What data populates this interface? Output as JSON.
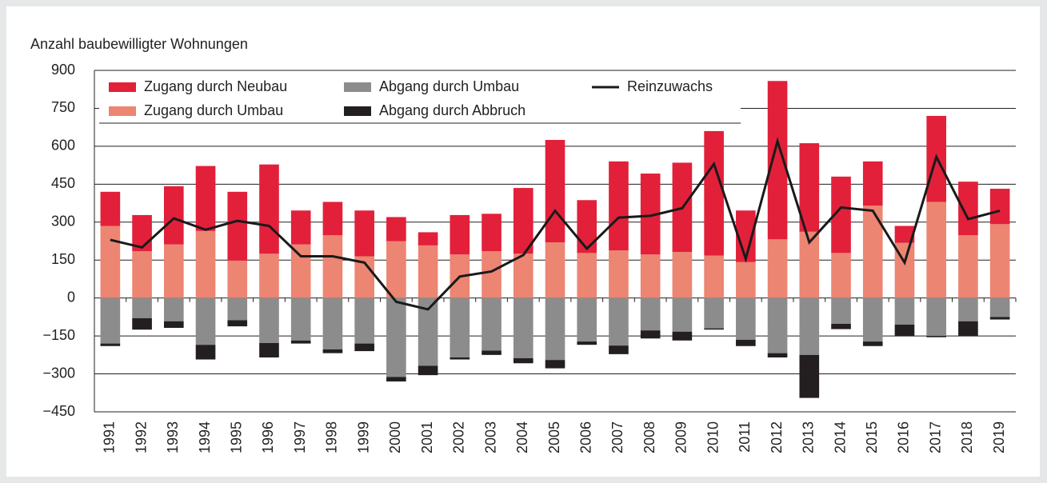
{
  "chart_data": {
    "type": "bar",
    "y_label": "Anzahl baubewilligter Wohnungen",
    "categories": [
      "1991",
      "1992",
      "1993",
      "1994",
      "1995",
      "1996",
      "1997",
      "1998",
      "1999",
      "2000",
      "2001",
      "2002",
      "2003",
      "2004",
      "2005",
      "2006",
      "2007",
      "2008",
      "2009",
      "2010",
      "2011",
      "2012",
      "2013",
      "2014",
      "2015",
      "2016",
      "2017",
      "2018",
      "2019"
    ],
    "series": [
      {
        "name": "Zugang durch Neubau",
        "color": "#e2203a",
        "type": "bar",
        "values": [
          135,
          143,
          230,
          257,
          272,
          353,
          134,
          132,
          181,
          95,
          52,
          156,
          148,
          260,
          405,
          209,
          352,
          320,
          353,
          492,
          204,
          626,
          350,
          302,
          175,
          67,
          340,
          212,
          140
        ]
      },
      {
        "name": "Zugang durch Umbau",
        "color": "#ec8572",
        "type": "bar",
        "values": [
          285,
          185,
          212,
          265,
          148,
          175,
          212,
          248,
          165,
          225,
          208,
          172,
          185,
          175,
          220,
          178,
          188,
          172,
          182,
          168,
          142,
          232,
          262,
          178,
          365,
          218,
          380,
          248,
          292
        ]
      },
      {
        "name": "Abgang durch Umbau",
        "color": "#8c8c8c",
        "type": "bar",
        "values": [
          -180,
          -80,
          -92,
          -185,
          -88,
          -178,
          -168,
          -203,
          -180,
          -312,
          -268,
          -235,
          -208,
          -238,
          -245,
          -172,
          -188,
          -128,
          -133,
          -120,
          -165,
          -218,
          -225,
          -102,
          -172,
          -105,
          -150,
          -92,
          -75
        ]
      },
      {
        "name": "Abgang durch Abbruch",
        "color": "#231f20",
        "type": "bar",
        "values": [
          -10,
          -45,
          -26,
          -58,
          -24,
          -57,
          -12,
          -15,
          -30,
          -18,
          -37,
          -8,
          -17,
          -20,
          -33,
          -13,
          -34,
          -32,
          -35,
          -5,
          -25,
          -17,
          -170,
          -21,
          -18,
          -45,
          -5,
          -58,
          -10
        ]
      },
      {
        "name": "Reinzuwachs",
        "color": "#1a1a1a",
        "type": "line",
        "values": [
          230,
          200,
          315,
          270,
          305,
          285,
          165,
          165,
          140,
          -15,
          -45,
          85,
          105,
          170,
          345,
          195,
          318,
          325,
          355,
          530,
          155,
          620,
          220,
          358,
          345,
          140,
          558,
          312,
          345
        ]
      }
    ],
    "ylim": [
      -450,
      900
    ],
    "yticks": [
      {
        "value": -450,
        "label": "−450"
      },
      {
        "value": -300,
        "label": "−300"
      },
      {
        "value": -150,
        "label": "−150"
      },
      0,
      150,
      300,
      450,
      600,
      750,
      900
    ],
    "grid": true,
    "legend": "top-left"
  }
}
